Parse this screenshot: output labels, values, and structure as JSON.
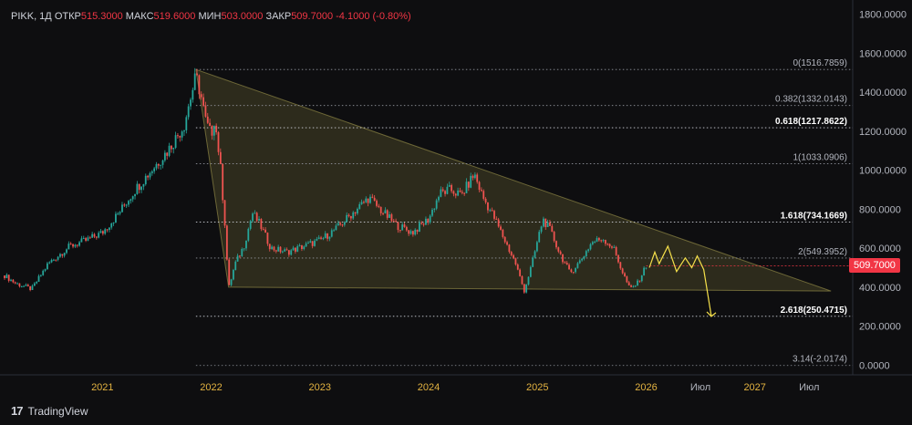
{
  "header": {
    "symbol": "PIKK, 1Д",
    "open_label": "ОТКР",
    "open": "515.3000",
    "high_label": "МАКС",
    "high": "519.6000",
    "low_label": "МИН",
    "low": "503.0000",
    "close_label": "ЗАКР",
    "close": "509.7000",
    "change": "-4.1000 (-0.80%)"
  },
  "brand": {
    "name": "TradingView"
  },
  "price_tag": "509.7000",
  "colors": {
    "up": "#26a69a",
    "down": "#ef5350",
    "fib": "#d1d4dc",
    "triangle": "#fff176",
    "projection": "#f5e04a",
    "tag": "#f23645"
  },
  "chart_data": {
    "type": "candlestick",
    "title": "PIKK, 1Д",
    "ylim": [
      -50,
      1850
    ],
    "y_ticks": [
      "1800.0000",
      "1600.0000",
      "1400.0000",
      "1200.0000",
      "1000.0000",
      "800.0000",
      "600.0000",
      "400.0000",
      "200.0000",
      "0.0000"
    ],
    "y_tick_values": [
      1800,
      1600,
      1400,
      1200,
      1000,
      800,
      600,
      400,
      200,
      0
    ],
    "x_labels": [
      "2021",
      "2022",
      "2023",
      "2024",
      "2025",
      "2026",
      "Июл",
      "2027",
      "Июл"
    ],
    "x_label_years": [
      2021.0,
      2022.0,
      2023.0,
      2024.0,
      2025.0,
      2026.0,
      2026.5,
      2027.0,
      2027.5
    ],
    "xlim": [
      2020.1,
      2027.9
    ],
    "price_path": [
      [
        2020.1,
        460
      ],
      [
        2020.2,
        420
      ],
      [
        2020.35,
        390
      ],
      [
        2020.5,
        520
      ],
      [
        2020.7,
        610
      ],
      [
        2020.85,
        640
      ],
      [
        2021.0,
        680
      ],
      [
        2021.15,
        780
      ],
      [
        2021.3,
        900
      ],
      [
        2021.45,
        1000
      ],
      [
        2021.6,
        1100
      ],
      [
        2021.75,
        1230
      ],
      [
        2021.8,
        1350
      ],
      [
        2021.86,
        1480
      ],
      [
        2021.9,
        1400
      ],
      [
        2021.95,
        1250
      ],
      [
        2022.0,
        1180
      ],
      [
        2022.03,
        1270
      ],
      [
        2022.08,
        1050
      ],
      [
        2022.13,
        700
      ],
      [
        2022.16,
        390
      ],
      [
        2022.22,
        520
      ],
      [
        2022.3,
        610
      ],
      [
        2022.38,
        780
      ],
      [
        2022.45,
        720
      ],
      [
        2022.55,
        600
      ],
      [
        2022.7,
        580
      ],
      [
        2022.85,
        610
      ],
      [
        2023.0,
        640
      ],
      [
        2023.15,
        700
      ],
      [
        2023.3,
        780
      ],
      [
        2023.45,
        860
      ],
      [
        2023.55,
        800
      ],
      [
        2023.7,
        720
      ],
      [
        2023.85,
        680
      ],
      [
        2024.0,
        750
      ],
      [
        2024.1,
        880
      ],
      [
        2024.2,
        900
      ],
      [
        2024.3,
        870
      ],
      [
        2024.42,
        980
      ],
      [
        2024.5,
        860
      ],
      [
        2024.6,
        760
      ],
      [
        2024.7,
        640
      ],
      [
        2024.8,
        520
      ],
      [
        2024.88,
        380
      ],
      [
        2024.95,
        520
      ],
      [
        2025.05,
        750
      ],
      [
        2025.12,
        690
      ],
      [
        2025.2,
        580
      ],
      [
        2025.3,
        470
      ],
      [
        2025.4,
        540
      ],
      [
        2025.5,
        630
      ],
      [
        2025.6,
        650
      ],
      [
        2025.7,
        600
      ],
      [
        2025.78,
        480
      ],
      [
        2025.85,
        390
      ],
      [
        2025.92,
        420
      ],
      [
        2026.0,
        510
      ]
    ],
    "projection": [
      [
        2026.03,
        500
      ],
      [
        2026.08,
        580
      ],
      [
        2026.12,
        520
      ],
      [
        2026.2,
        610
      ],
      [
        2026.28,
        480
      ],
      [
        2026.36,
        550
      ],
      [
        2026.42,
        500
      ],
      [
        2026.47,
        560
      ],
      [
        2026.53,
        490
      ],
      [
        2026.6,
        250
      ]
    ],
    "triangle": [
      [
        2021.86,
        1516.8
      ],
      [
        2027.7,
        380
      ],
      [
        2022.16,
        400
      ]
    ],
    "fib_levels": [
      {
        "label": "0(1516.7859)",
        "value": 1516.7859,
        "bold": false
      },
      {
        "label": "0.382(1332.0143)",
        "value": 1332.0143,
        "bold": false
      },
      {
        "label": "0.618(1217.8622)",
        "value": 1217.8622,
        "bold": true
      },
      {
        "label": "1(1033.0906)",
        "value": 1033.0906,
        "bold": false
      },
      {
        "label": "1.618(734.1669)",
        "value": 734.1669,
        "bold": true
      },
      {
        "label": "2(549.3952)",
        "value": 549.3952,
        "bold": false
      },
      {
        "label": "2.618(250.4715)",
        "value": 250.4715,
        "bold": true
      },
      {
        "label": "3.14(-2.0174)",
        "value": -2.0174,
        "bold": false
      }
    ],
    "fib_x_start": 2021.86,
    "last_price": 509.7
  }
}
